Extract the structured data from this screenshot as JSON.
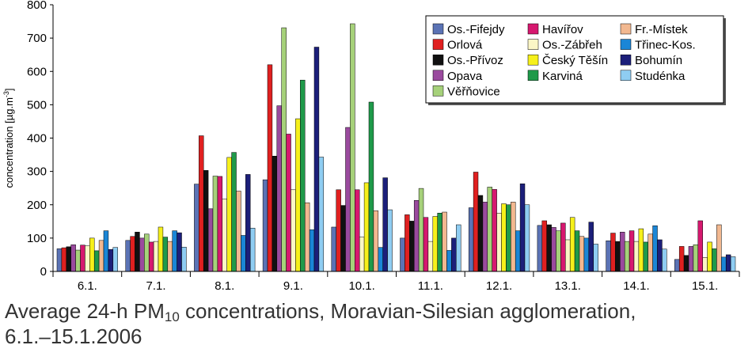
{
  "chart_data": {
    "type": "bar",
    "ylabel": "concentration [µg.m",
    "ylabel_sup": "-3",
    "ylabel_end": "]",
    "ylim": [
      0,
      800
    ],
    "yticks": [
      0,
      100,
      200,
      300,
      400,
      500,
      600,
      700,
      800
    ],
    "grid": false,
    "legend_position": "top-right",
    "categories": [
      "6.1.",
      "7.1.",
      "8.1.",
      "9.1.",
      "10.1.",
      "11.1.",
      "12.1.",
      "13.1.",
      "14.1.",
      "15.1."
    ],
    "series": [
      {
        "name": "Os.-Fifejdy",
        "color": "#5b73b5",
        "values": [
          68,
          93,
          262,
          275,
          133,
          100,
          191,
          138,
          92,
          36
        ]
      },
      {
        "name": "Orlová",
        "color": "#e02020",
        "values": [
          71,
          105,
          407,
          620,
          245,
          170,
          298,
          152,
          115,
          75
        ]
      },
      {
        "name": "Os.-Přívoz",
        "color": "#111111",
        "values": [
          74,
          118,
          303,
          346,
          198,
          151,
          228,
          140,
          90,
          48
        ]
      },
      {
        "name": "Opava",
        "color": "#9a4a9e",
        "values": [
          80,
          100,
          188,
          497,
          432,
          213,
          208,
          132,
          118,
          75
        ]
      },
      {
        "name": "Věřňovice",
        "color": "#a6d17a",
        "values": [
          64,
          112,
          286,
          731,
          743,
          249,
          253,
          122,
          90,
          80
        ]
      },
      {
        "name": "Havířov",
        "color": "#d6186f",
        "values": [
          79,
          88,
          285,
          412,
          245,
          162,
          246,
          145,
          122,
          152
        ]
      },
      {
        "name": "Os.-Zábřeh",
        "color": "#fbf6c6",
        "values": [
          77,
          90,
          217,
          245,
          103,
          90,
          175,
          95,
          90,
          42
        ]
      },
      {
        "name": "Český Těšín",
        "color": "#f6f01b",
        "values": [
          100,
          133,
          342,
          458,
          266,
          165,
          203,
          162,
          128,
          88
        ]
      },
      {
        "name": "Karviná",
        "color": "#1f9a4a",
        "values": [
          62,
          103,
          357,
          574,
          508,
          175,
          200,
          122,
          88,
          68
        ]
      },
      {
        "name": "Fr.-Místek",
        "color": "#f2b890",
        "values": [
          93,
          90,
          241,
          206,
          182,
          178,
          208,
          105,
          112,
          140
        ]
      },
      {
        "name": "Třinec-Kos.",
        "color": "#1b86d6",
        "values": [
          122,
          122,
          108,
          125,
          72,
          63,
          122,
          100,
          137,
          43
        ]
      },
      {
        "name": "Bohumín",
        "color": "#1c1f7a",
        "values": [
          66,
          116,
          291,
          673,
          281,
          100,
          263,
          148,
          95,
          50
        ]
      },
      {
        "name": "Studénka",
        "color": "#8fcdf2",
        "values": [
          72,
          73,
          130,
          343,
          185,
          140,
          200,
          82,
          67,
          44
        ]
      }
    ],
    "legend_order": [
      [
        "Os.-Fifejdy",
        "Orlová",
        "Os.-Přívoz",
        "Opava",
        "Věřňovice"
      ],
      [
        "Havířov",
        "Os.-Zábřeh",
        "Český Těšín",
        "Karviná"
      ],
      [
        "Fr.-Místek",
        "Třinec-Kos.",
        "Bohumín",
        "Studénka"
      ]
    ]
  },
  "caption": {
    "line1_prefix": "Average 24-h PM",
    "line1_sub": "10",
    "line1_suffix": " concentrations, Moravian-Silesian agglomeration,",
    "line2": "6.1.–15.1.2006"
  }
}
